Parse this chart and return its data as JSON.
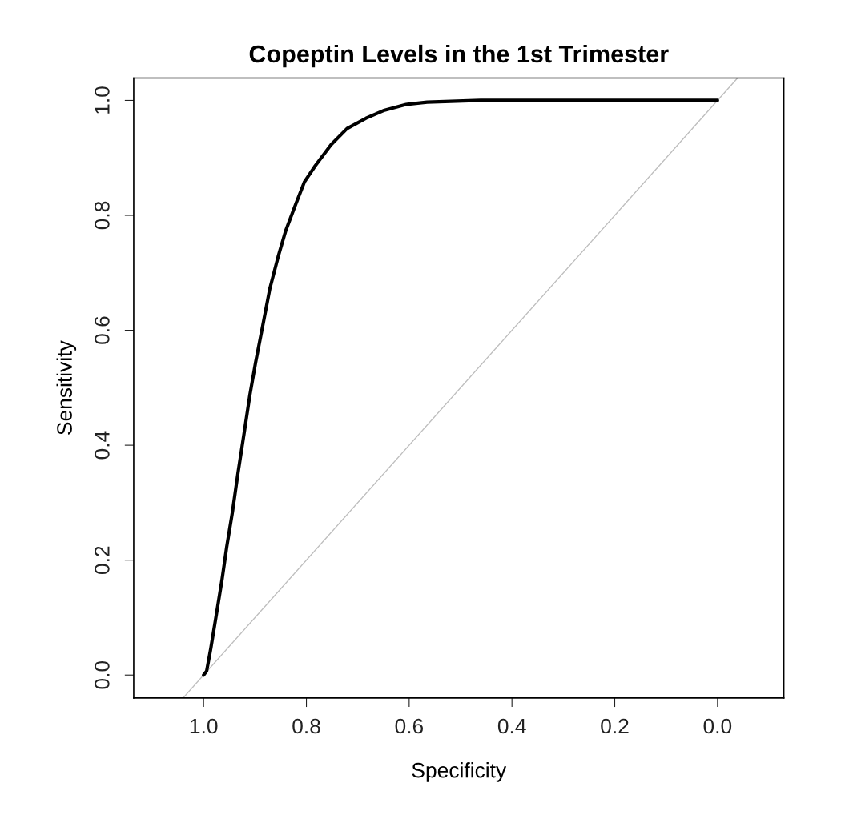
{
  "chart_data": {
    "type": "line",
    "title": "Copeptin Levels in the 1st Trimester",
    "xlabel": "Specificity",
    "ylabel": "Sensitivity",
    "xlim": [
      1.136,
      -0.129
    ],
    "ylim": [
      -0.04,
      1.039
    ],
    "xticks": [
      {
        "value": 1,
        "label": "1.0"
      },
      0.8,
      0.6,
      0.4,
      0.2,
      {
        "value": 0,
        "label": "0.0"
      }
    ],
    "yticks": [
      {
        "value": 0,
        "label": "0.0"
      },
      0.2,
      0.4,
      0.6,
      0.8,
      {
        "value": 1,
        "label": "1.0"
      }
    ],
    "grid": false,
    "series": [
      {
        "color": "#bebebe",
        "x": [
          1.04,
          -0.039
        ],
        "values": [
          -0.04,
          1.039
        ]
      },
      {
        "color": "#000000",
        "x": [
          1.0,
          0.994,
          0.986,
          0.975,
          0.964,
          0.955,
          0.944,
          0.933,
          0.921,
          0.91,
          0.899,
          0.886,
          0.871,
          0.855,
          0.84,
          0.824,
          0.804,
          0.783,
          0.752,
          0.721,
          0.684,
          0.648,
          0.606,
          0.565,
          0.461,
          0.0
        ],
        "values": [
          0.0,
          0.007,
          0.046,
          0.106,
          0.167,
          0.223,
          0.283,
          0.352,
          0.422,
          0.487,
          0.543,
          0.603,
          0.673,
          0.728,
          0.774,
          0.812,
          0.858,
          0.886,
          0.923,
          0.951,
          0.969,
          0.983,
          0.993,
          0.997,
          1.0,
          1.0
        ]
      }
    ]
  }
}
